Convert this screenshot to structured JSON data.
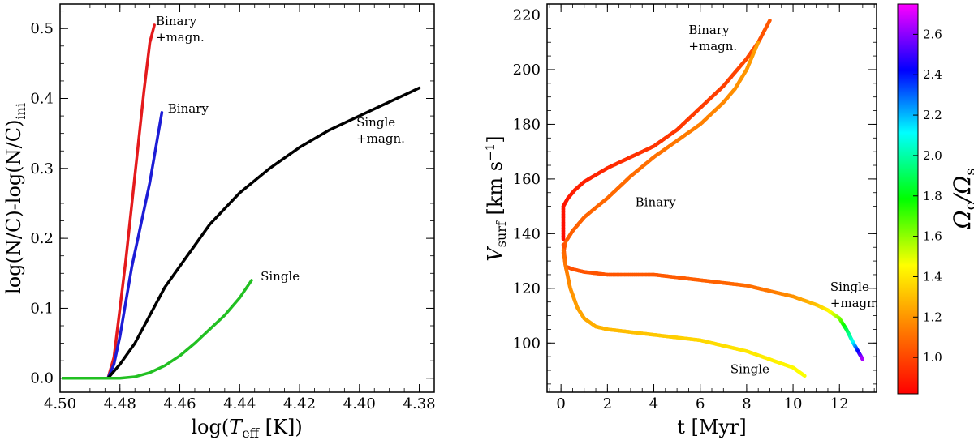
{
  "chart_data": [
    {
      "type": "line",
      "title": "",
      "xlabel": "log(T_eff [K])",
      "ylabel": "log(N/C)-log(N/C)_ini",
      "xlabel_parts": {
        "pre": "log(",
        "var": "T",
        "sub": "eff",
        "post": " [K])"
      },
      "ylabel_parts": {
        "main": "log(N/C)-log(N/C)",
        "sub": "ini"
      },
      "xlim": [
        4.5,
        4.375
      ],
      "ylim": [
        -0.02,
        0.535
      ],
      "xticks": [
        "4.50",
        "4.48",
        "4.46",
        "4.44",
        "4.42",
        "4.40",
        "4.38"
      ],
      "xtick_values": [
        4.5,
        4.48,
        4.46,
        4.44,
        4.42,
        4.4,
        4.38
      ],
      "yticks": [
        "0.0",
        "0.1",
        "0.2",
        "0.3",
        "0.4",
        "0.5"
      ],
      "ytick_values": [
        0.0,
        0.1,
        0.2,
        0.3,
        0.4,
        0.5
      ],
      "series": [
        {
          "name": "Binary +magn.",
          "color": "#e41a1c",
          "x": [
            4.499,
            4.49,
            4.486,
            4.484,
            4.482,
            4.48,
            4.478,
            4.476,
            4.474,
            4.472,
            4.47,
            4.4685
          ],
          "y": [
            0.0,
            0.0,
            0.0,
            0.0,
            0.03,
            0.1,
            0.17,
            0.25,
            0.33,
            0.41,
            0.48,
            0.505
          ]
        },
        {
          "name": "Binary",
          "color": "#1c1cd6",
          "x": [
            4.499,
            4.49,
            4.486,
            4.484,
            4.482,
            4.48,
            4.478,
            4.476,
            4.474,
            4.472,
            4.47,
            4.468,
            4.466
          ],
          "y": [
            0.0,
            0.0,
            0.0,
            0.0,
            0.02,
            0.06,
            0.11,
            0.16,
            0.2,
            0.24,
            0.28,
            0.33,
            0.38
          ]
        },
        {
          "name": "Single +magn.",
          "color": "#000000",
          "x": [
            4.499,
            4.49,
            4.486,
            4.484,
            4.482,
            4.48,
            4.475,
            4.47,
            4.465,
            4.46,
            4.455,
            4.45,
            4.44,
            4.43,
            4.42,
            4.41,
            4.4,
            4.39,
            4.38
          ],
          "y": [
            0.0,
            0.0,
            0.0,
            0.0,
            0.01,
            0.02,
            0.05,
            0.09,
            0.13,
            0.16,
            0.19,
            0.22,
            0.265,
            0.3,
            0.33,
            0.355,
            0.375,
            0.395,
            0.415
          ]
        },
        {
          "name": "Single",
          "color": "#22c022",
          "x": [
            4.499,
            4.49,
            4.485,
            4.48,
            4.475,
            4.47,
            4.465,
            4.46,
            4.455,
            4.45,
            4.445,
            4.44,
            4.436
          ],
          "y": [
            0.0,
            0.0,
            0.0,
            0.0,
            0.002,
            0.008,
            0.018,
            0.032,
            0.05,
            0.07,
            0.09,
            0.115,
            0.14
          ]
        }
      ],
      "annotations": [
        {
          "lines": [
            "Binary",
            "+magn."
          ],
          "x": 4.468,
          "y": 0.505
        },
        {
          "lines": [
            "Binary"
          ],
          "x": 4.464,
          "y": 0.38
        },
        {
          "lines": [
            "Single",
            "+magn."
          ],
          "x": 4.401,
          "y": 0.36
        },
        {
          "lines": [
            "Single"
          ],
          "x": 4.433,
          "y": 0.14
        }
      ]
    },
    {
      "type": "scatter",
      "title": "",
      "xlabel": "t [Myr]",
      "ylabel": "V_surf [km s^-1]",
      "ylabel_parts": {
        "var": "V",
        "sub": "surf",
        "unit": " [km s",
        "sup": "−1",
        "close": "]"
      },
      "xlim": [
        -0.6,
        13.6
      ],
      "ylim": [
        82,
        224
      ],
      "xticks": [
        "0",
        "2",
        "4",
        "6",
        "8",
        "10",
        "12"
      ],
      "xtick_values": [
        0,
        2,
        4,
        6,
        8,
        10,
        12
      ],
      "yticks": [
        "100",
        "120",
        "140",
        "160",
        "180",
        "200",
        "220"
      ],
      "ytick_values": [
        100,
        120,
        140,
        160,
        180,
        200,
        220
      ],
      "colorbar": {
        "label": "Ω_c/Ω_s",
        "label_parts": {
          "a": "Ω",
          "asub": "c",
          "b": "/Ω",
          "bsub": "s"
        },
        "range": [
          0.82,
          2.75
        ],
        "ticks": [
          "1.0",
          "1.2",
          "1.4",
          "1.6",
          "1.8",
          "2.0",
          "2.2",
          "2.4",
          "2.6"
        ],
        "tick_values": [
          1.0,
          1.2,
          1.4,
          1.6,
          1.8,
          2.0,
          2.2,
          2.4,
          2.6
        ],
        "colors": [
          "#ff0000",
          "#ff8000",
          "#ffff00",
          "#00ff00",
          "#00ffff",
          "#0000ff",
          "#ff00ff"
        ]
      },
      "series": [
        {
          "name": "Binary +magn.",
          "t": [
            0.1,
            0.1,
            0.3,
            0.6,
            1.0,
            2.0,
            3.0,
            4.0,
            5.0,
            6.0,
            7.0,
            8.0,
            8.5,
            9.0
          ],
          "v": [
            138,
            150,
            153,
            156,
            159,
            164,
            168,
            172,
            178,
            186,
            194,
            204,
            210,
            218
          ],
          "omega": [
            0.85,
            0.87,
            0.88,
            0.9,
            0.9,
            0.92,
            0.94,
            0.95,
            0.96,
            0.97,
            0.98,
            1.0,
            1.02,
            1.04
          ]
        },
        {
          "name": "Binary",
          "t": [
            0.1,
            0.2,
            0.5,
            1.0,
            2.0,
            3.0,
            4.0,
            5.0,
            6.0,
            7.0,
            7.5,
            8.0,
            8.5
          ],
          "v": [
            133,
            137,
            141,
            146,
            153,
            161,
            168,
            174,
            180,
            188,
            193,
            200,
            210
          ],
          "omega": [
            1.05,
            1.05,
            1.06,
            1.07,
            1.08,
            1.09,
            1.1,
            1.12,
            1.14,
            1.16,
            1.18,
            1.2,
            1.22
          ]
        },
        {
          "name": "Single +magn.",
          "t": [
            0.1,
            0.2,
            0.5,
            1.0,
            2.0,
            3.0,
            4.0,
            5.0,
            6.0,
            7.0,
            8.0,
            9.0,
            10.0,
            11.0,
            11.5,
            12.0,
            12.3,
            12.6,
            12.8,
            13.0
          ],
          "v": [
            136,
            128,
            127,
            126,
            125,
            125,
            125,
            124,
            123,
            122,
            121,
            119,
            117,
            114,
            112,
            109,
            105,
            100,
            97,
            94
          ],
          "omega": [
            1.02,
            1.02,
            1.02,
            1.03,
            1.03,
            1.04,
            1.04,
            1.05,
            1.06,
            1.07,
            1.09,
            1.12,
            1.18,
            1.3,
            1.42,
            1.6,
            1.85,
            2.1,
            2.4,
            2.65
          ]
        },
        {
          "name": "Single",
          "t": [
            0.1,
            0.2,
            0.4,
            0.7,
            1.0,
            1.5,
            2.0,
            3.0,
            4.0,
            5.0,
            6.0,
            7.0,
            8.0,
            9.0,
            10.0,
            10.5
          ],
          "v": [
            134,
            128,
            120,
            113,
            109,
            106,
            105,
            104,
            103,
            102,
            101,
            99,
            97,
            94,
            91,
            88
          ],
          "omega": [
            1.08,
            1.12,
            1.18,
            1.22,
            1.24,
            1.26,
            1.28,
            1.3,
            1.32,
            1.34,
            1.36,
            1.38,
            1.4,
            1.42,
            1.45,
            1.47
          ]
        }
      ],
      "annotations": [
        {
          "lines": [
            "Binary",
            "+magn."
          ],
          "x": 5.5,
          "y": 213
        },
        {
          "lines": [
            "Binary"
          ],
          "x": 3.2,
          "y": 150
        },
        {
          "lines": [
            "Single",
            "+magn."
          ],
          "x": 11.6,
          "y": 119
        },
        {
          "lines": [
            "Single"
          ],
          "x": 7.3,
          "y": 89
        }
      ]
    }
  ]
}
